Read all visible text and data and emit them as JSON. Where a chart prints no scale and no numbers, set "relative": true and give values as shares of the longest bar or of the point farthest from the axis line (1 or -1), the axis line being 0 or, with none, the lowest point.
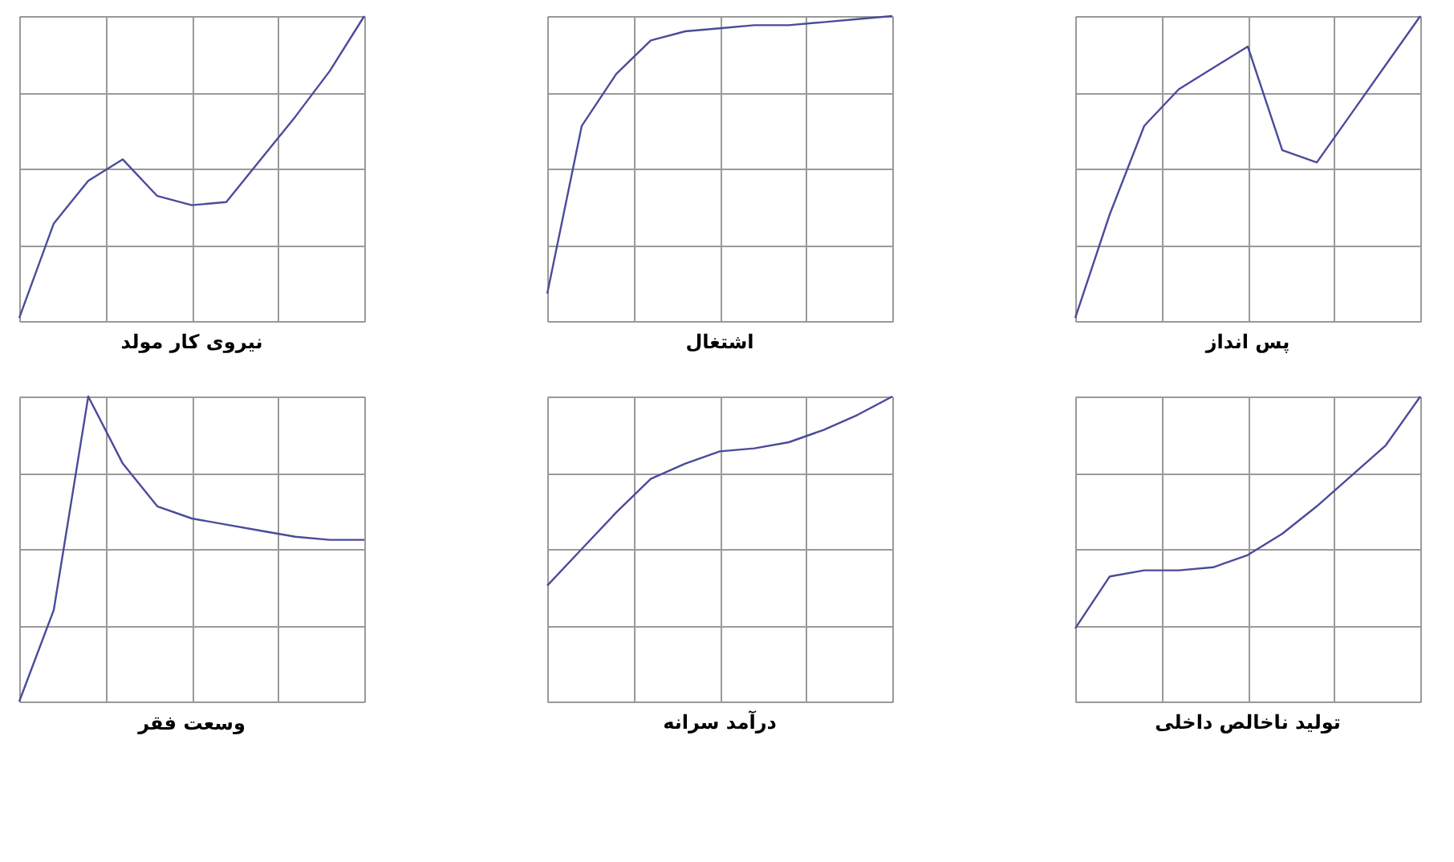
{
  "chart_data": [
    {
      "type": "line",
      "title": "نیروی کار مولد",
      "relative": true,
      "grid": true,
      "tick_labels": false,
      "categories": [
        null,
        null,
        null,
        null,
        null,
        null,
        null,
        null,
        null,
        null,
        null
      ],
      "series": [
        {
          "color": "#4b4b9b",
          "values": [
            0.01,
            0.32,
            0.46,
            0.53,
            0.41,
            0.38,
            0.39,
            0.53,
            0.67,
            0.82,
            1
          ]
        }
      ]
    },
    {
      "type": "line",
      "title": "اشتغال",
      "relative": true,
      "grid": true,
      "tick_labels": false,
      "categories": [
        null,
        null,
        null,
        null,
        null,
        null,
        null,
        null,
        null,
        null,
        null
      ],
      "series": [
        {
          "color": "#4b4b9b",
          "values": [
            0.09,
            0.64,
            0.81,
            0.92,
            0.95,
            0.96,
            0.97,
            0.97,
            0.98,
            0.99,
            1
          ]
        }
      ]
    },
    {
      "type": "line",
      "title": "پس انداز",
      "relative": true,
      "grid": true,
      "tick_labels": false,
      "categories": [
        null,
        null,
        null,
        null,
        null,
        null,
        null,
        null,
        null,
        null,
        null
      ],
      "series": [
        {
          "color": "#4b4b9b",
          "values": [
            0.01,
            0.35,
            0.64,
            0.76,
            0.83,
            0.9,
            0.56,
            0.52,
            0.68,
            0.84,
            1
          ]
        }
      ]
    },
    {
      "type": "line",
      "title": "وسعت فقر",
      "relative": true,
      "grid": true,
      "tick_labels": false,
      "categories": [
        null,
        null,
        null,
        null,
        null,
        null,
        null,
        null,
        null,
        null,
        null
      ],
      "series": [
        {
          "color": "#4b4b9b",
          "values": [
            0,
            0.3,
            1,
            0.78,
            0.64,
            0.6,
            0.58,
            0.56,
            0.54,
            0.53,
            0.53
          ]
        }
      ]
    },
    {
      "type": "line",
      "title": "درآمد سرانه",
      "relative": true,
      "grid": true,
      "tick_labels": false,
      "categories": [
        null,
        null,
        null,
        null,
        null,
        null,
        null,
        null,
        null,
        null,
        null
      ],
      "series": [
        {
          "color": "#4b4b9b",
          "values": [
            0.38,
            0.5,
            0.62,
            0.73,
            0.78,
            0.82,
            0.83,
            0.85,
            0.89,
            0.94,
            1
          ]
        }
      ]
    },
    {
      "type": "line",
      "title": "تولید ناخالص داخلی",
      "relative": true,
      "grid": true,
      "tick_labels": false,
      "categories": [
        null,
        null,
        null,
        null,
        null,
        null,
        null,
        null,
        null,
        null,
        null
      ],
      "series": [
        {
          "color": "#4b4b9b",
          "values": [
            0.24,
            0.41,
            0.43,
            0.43,
            0.44,
            0.48,
            0.55,
            0.64,
            0.74,
            0.84,
            1
          ]
        }
      ]
    }
  ]
}
